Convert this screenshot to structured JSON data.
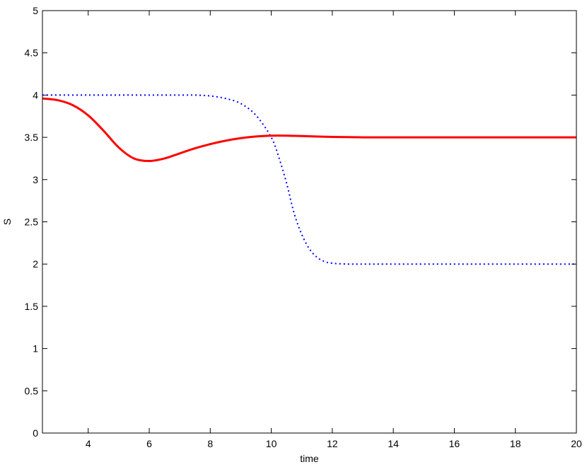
{
  "chart_data": {
    "type": "line",
    "title": "",
    "xlabel": "time",
    "ylabel": "S",
    "xlim": [
      2.5,
      20
    ],
    "ylim": [
      0,
      5
    ],
    "x_ticks": [
      "4",
      "6",
      "8",
      "10",
      "12",
      "14",
      "16",
      "18",
      "20"
    ],
    "y_ticks": [
      "0",
      "0.5",
      "1",
      "1.5",
      "2",
      "2.5",
      "3",
      "3.5",
      "4",
      "4.5",
      "5"
    ],
    "grid": false,
    "legend": "none",
    "series": [
      {
        "color": "#ff0000",
        "style": "solid",
        "x": [
          2.5,
          3.0,
          3.5,
          4.0,
          4.5,
          5.0,
          5.5,
          6.0,
          6.5,
          7.0,
          7.5,
          8.0,
          8.5,
          9.0,
          9.5,
          10.0,
          10.5,
          11.0,
          12.0,
          13.0,
          14.0,
          16.0,
          18.0,
          20.0
        ],
        "y": [
          3.96,
          3.94,
          3.88,
          3.76,
          3.58,
          3.38,
          3.25,
          3.22,
          3.25,
          3.31,
          3.37,
          3.42,
          3.46,
          3.49,
          3.51,
          3.52,
          3.52,
          3.515,
          3.505,
          3.5,
          3.5,
          3.5,
          3.5,
          3.5
        ]
      },
      {
        "color": "#0000ff",
        "style": "dotted",
        "x": [
          2.5,
          3.0,
          4.0,
          5.0,
          6.0,
          7.0,
          7.5,
          8.0,
          8.5,
          9.0,
          9.5,
          10.0,
          10.25,
          10.5,
          10.75,
          11.0,
          11.25,
          11.5,
          11.75,
          12.0,
          12.5,
          13.0,
          14.0,
          16.0,
          18.0,
          20.0
        ],
        "y": [
          4.0,
          4.0,
          4.0,
          4.0,
          4.0,
          4.0,
          4.0,
          3.99,
          3.96,
          3.9,
          3.76,
          3.5,
          3.26,
          2.96,
          2.6,
          2.35,
          2.18,
          2.08,
          2.03,
          2.01,
          2.0,
          2.0,
          2.0,
          2.0,
          2.0,
          2.0
        ]
      }
    ]
  }
}
